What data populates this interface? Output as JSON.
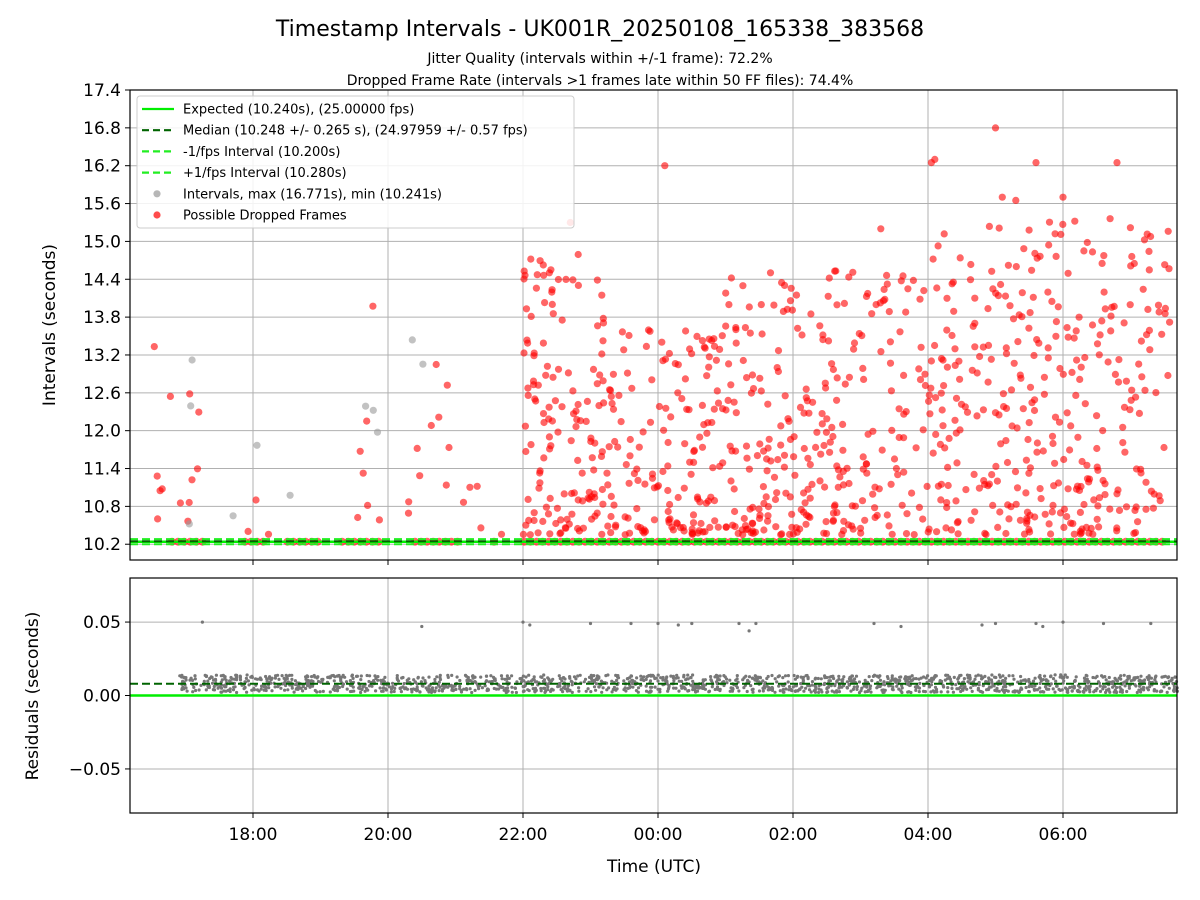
{
  "title": "Timestamp Intervals - UK001R_20250108_165338_383568",
  "subtitle_1": "Jitter Quality (intervals within +/-1 frame): 72.2%",
  "subtitle_2": "Dropped Frame Rate (intervals >1 frames late within 50 FF files): 74.4%",
  "colors": {
    "expected": "#00ee00",
    "median": "#006400",
    "fps_interval": "#22ee22",
    "intervals": "#999999",
    "dropped": "#ff0000",
    "residual_points": "#777777",
    "grid": "#b0b0b0"
  },
  "chart_data": [
    {
      "type": "scatter",
      "panel": "top",
      "ylabel": "Intervals (seconds)",
      "ylim": [
        9.95,
        17.4
      ],
      "y_ticks": [
        "10.2",
        "10.8",
        "11.4",
        "12.0",
        "12.6",
        "13.2",
        "13.8",
        "14.4",
        "15.0",
        "15.6",
        "16.2",
        "16.8",
        "17.4"
      ],
      "grid": true,
      "legend_position": "upper-left",
      "legend": [
        {
          "label": "Expected (10.240s), (25.00000 fps)",
          "style": "solid",
          "color": "#00ee00"
        },
        {
          "label": "Median (10.248 +/- 0.265 s), (24.97959 +/- 0.57 fps)",
          "style": "dashed",
          "color": "#006400"
        },
        {
          "label": "-1/fps Interval (10.200s)",
          "style": "dashed",
          "color": "#22ee22"
        },
        {
          "label": "+1/fps Interval (10.280s)",
          "style": "dashed",
          "color": "#22ee22"
        },
        {
          "label": "Intervals, max (16.771s), min (10.241s)",
          "style": "marker",
          "color": "#999999"
        },
        {
          "label": "Possible Dropped Frames",
          "style": "marker",
          "color": "#ff0000"
        }
      ],
      "reference_lines": {
        "expected": 10.24,
        "median": 10.248,
        "minus_1fps": 10.2,
        "plus_1fps": 10.28
      },
      "x_range_utc": [
        "16:10",
        "07:40"
      ],
      "max_interval": 16.771,
      "min_interval": 10.241
    },
    {
      "type": "scatter",
      "panel": "bottom",
      "ylabel": "Residuals (seconds)",
      "xlabel": "Time (UTC)",
      "ylim": [
        -0.08,
        0.08
      ],
      "y_ticks": [
        "0.05",
        "0.00",
        "−0.05"
      ],
      "x_ticks": [
        "18:00",
        "20:00",
        "22:00",
        "00:00",
        "02:00",
        "04:00",
        "06:00"
      ],
      "grid": true,
      "reference_lines": {
        "expected": 0.0,
        "median": 0.008
      },
      "residual_band": [
        0.002,
        0.014
      ],
      "outlier_level": 0.049
    }
  ]
}
